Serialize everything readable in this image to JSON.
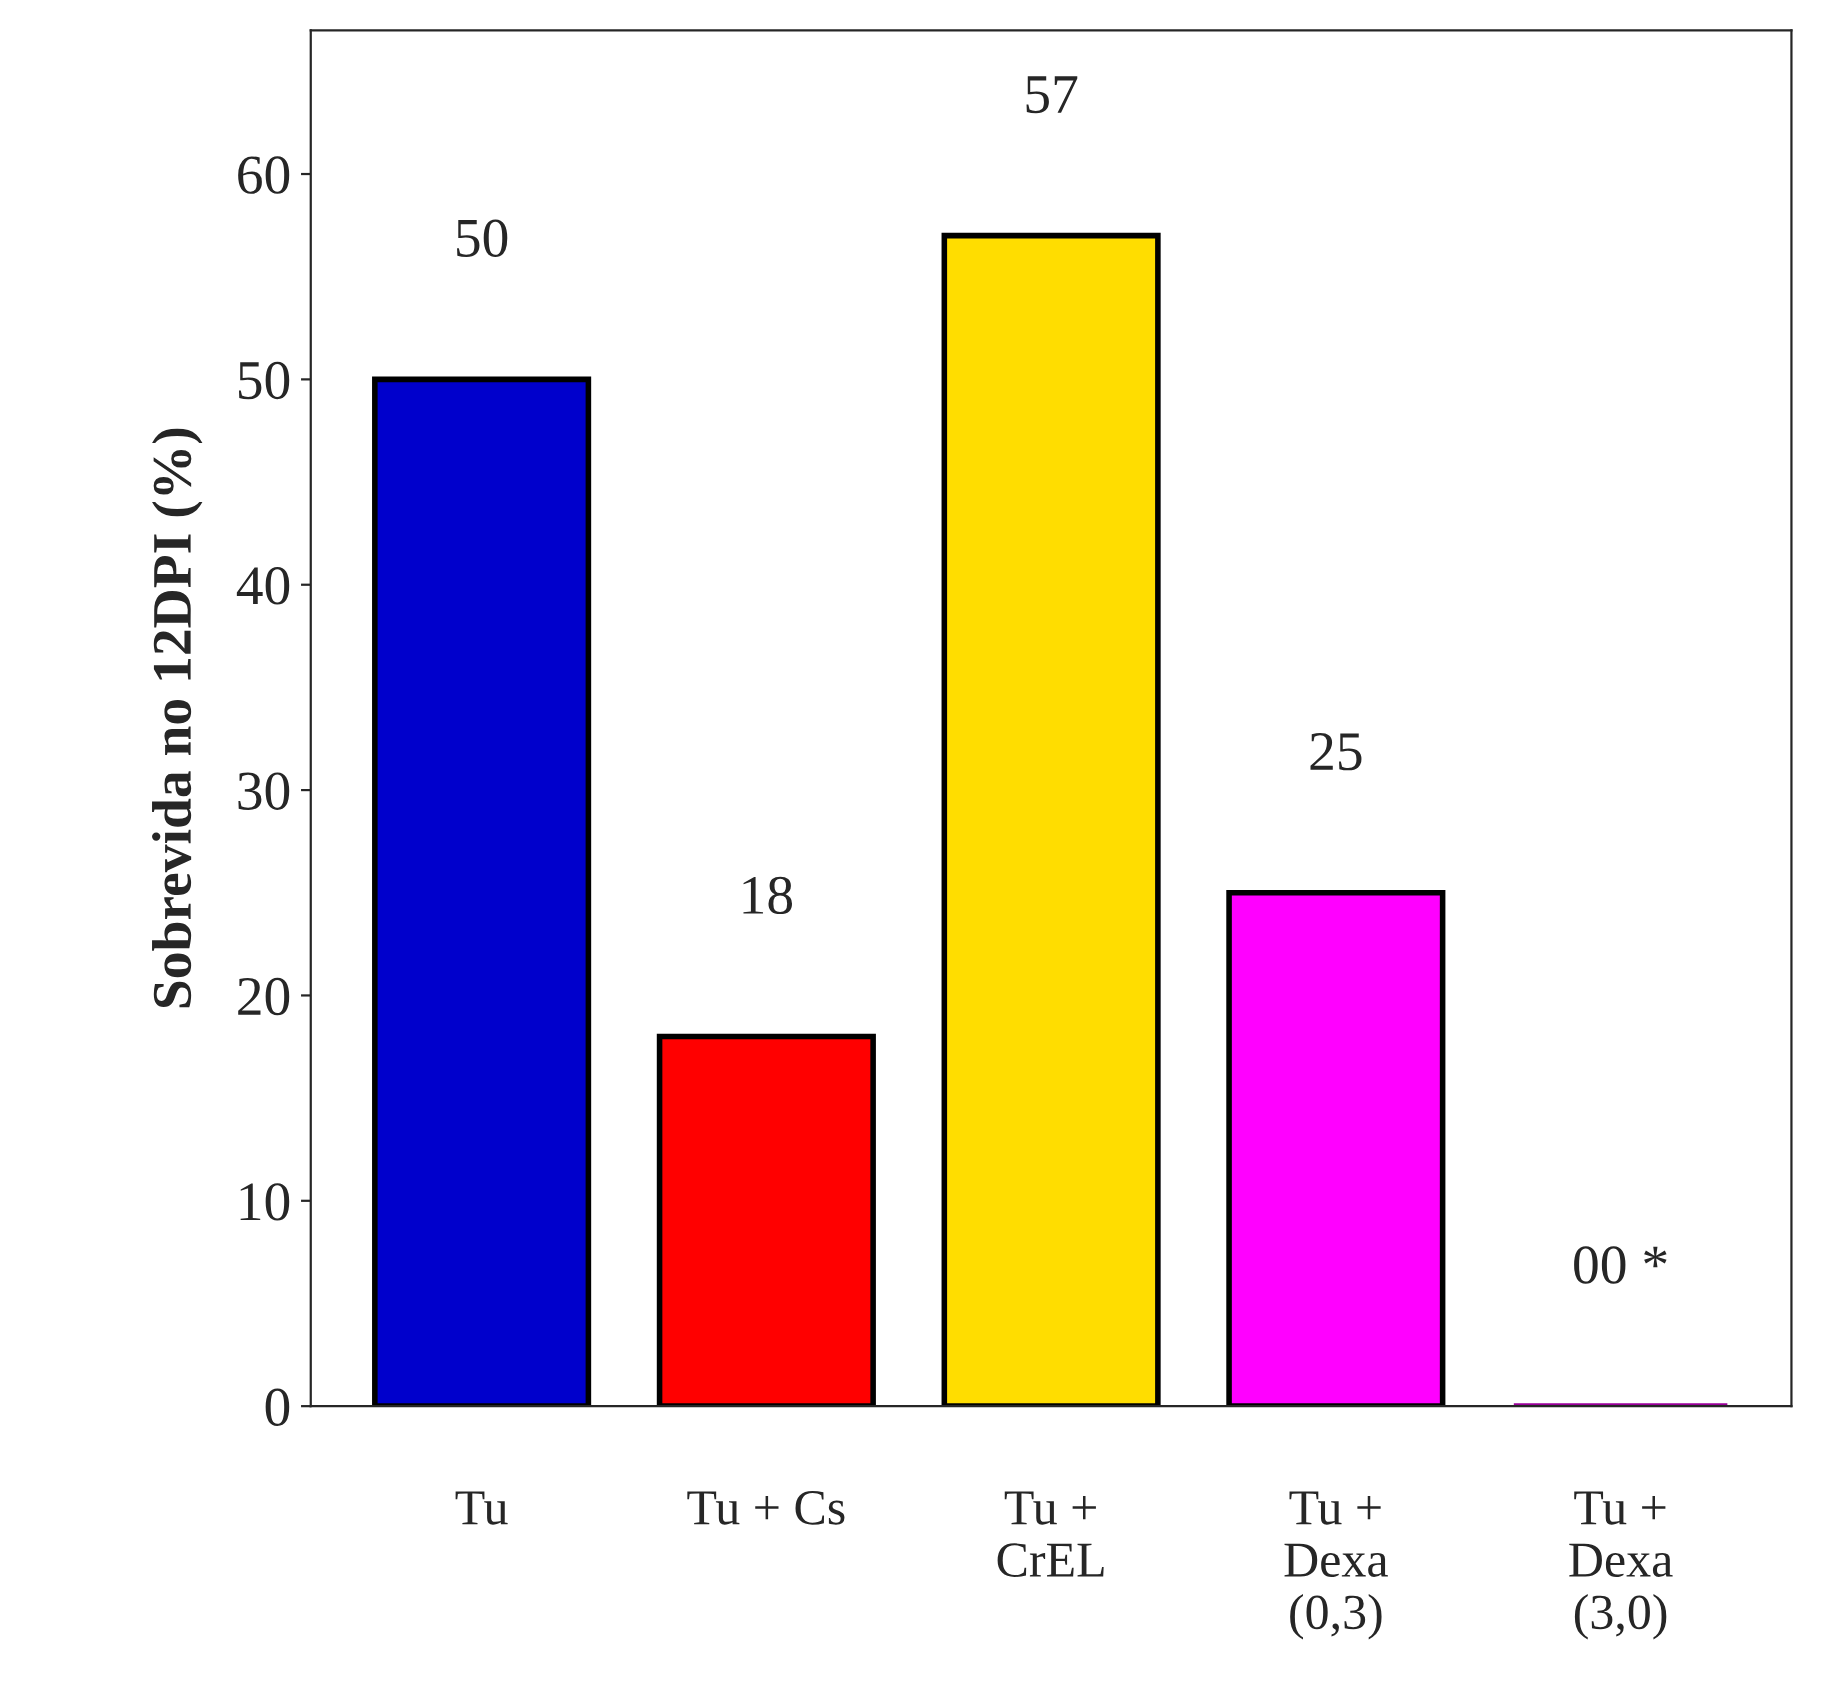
{
  "chart_data": {
    "type": "bar",
    "ylabel": "Sobrevida no 12DPI (%)",
    "categories": [
      "Tu",
      "Tu + Cs",
      "Tu +\nCrEL",
      "Tu +\nDexa\n(0,3)",
      "Tu +\nDexa\n(3,0)"
    ],
    "values": [
      50,
      18,
      57,
      25,
      0
    ],
    "value_labels": [
      "50",
      "18",
      "57",
      "25",
      "00 *"
    ],
    "colors": [
      "#0000cc",
      "#ff0000",
      "#ffdd00",
      "#ff00ff",
      "#990099"
    ],
    "ylim": [
      0,
      67
    ],
    "yticks": [
      0,
      10,
      20,
      30,
      40,
      50,
      60
    ],
    "grid": false,
    "legend": false
  }
}
